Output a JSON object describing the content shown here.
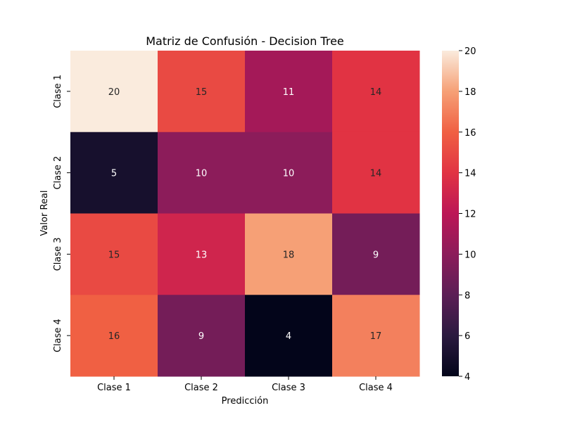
{
  "chart_data": {
    "type": "heatmap",
    "title": "Matriz de Confusión - Decision Tree",
    "xlabel": "Predicción",
    "ylabel": "Valor Real",
    "x_categories": [
      "Clase 1",
      "Clase 2",
      "Clase 3",
      "Clase 4"
    ],
    "y_categories": [
      "Clase 1",
      "Clase 2",
      "Clase 3",
      "Clase 4"
    ],
    "values": [
      [
        20,
        15,
        11,
        14
      ],
      [
        5,
        10,
        10,
        14
      ],
      [
        15,
        13,
        18,
        9
      ],
      [
        16,
        9,
        4,
        17
      ]
    ],
    "colorbar": {
      "min": 4,
      "max": 20,
      "ticks": [
        4,
        6,
        8,
        10,
        12,
        14,
        16,
        18,
        20
      ],
      "colormap": "rocket",
      "position": "right"
    },
    "annotations": true,
    "grid": false
  }
}
